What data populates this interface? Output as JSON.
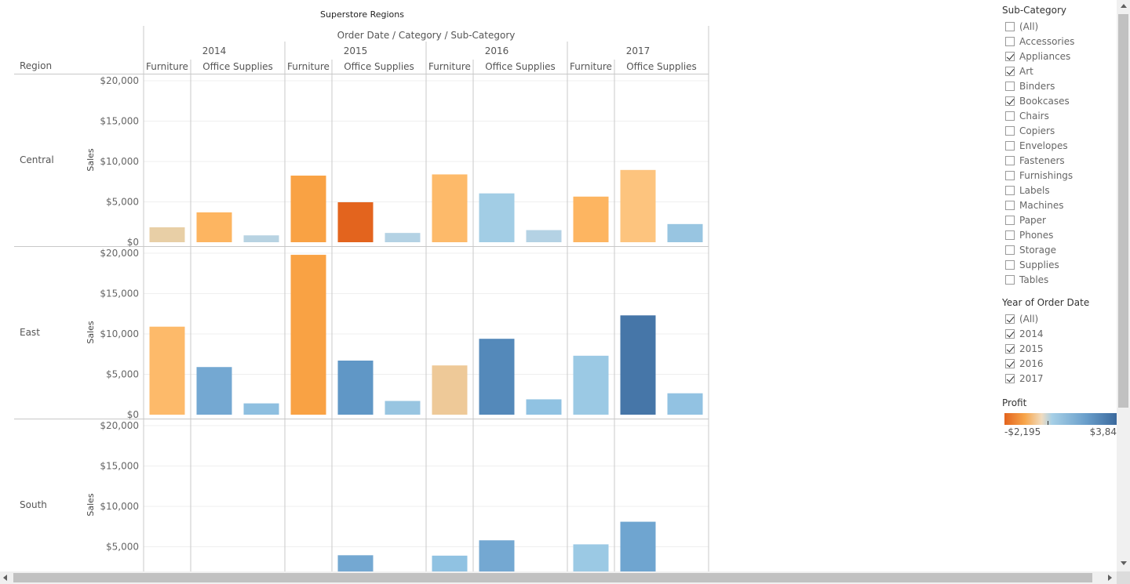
{
  "title": "Superstore Regions",
  "column_header": "Order Date / Category / Sub-Category",
  "region_header": "Region",
  "axis_label": "Sales",
  "chart_data": {
    "type": "bar",
    "title": "Superstore Regions",
    "ylabel": "Sales",
    "ylim": [
      0,
      20000
    ],
    "yticks": [
      0,
      5000,
      10000,
      15000,
      20000
    ],
    "ytick_labels": [
      "$0",
      "$5,000",
      "$10,000",
      "$15,000",
      "$20,000"
    ],
    "years": [
      "2014",
      "2015",
      "2016",
      "2017"
    ],
    "categories": [
      "Furniture",
      "Office Supplies"
    ],
    "subcategories_by_category": {
      "Furniture": [
        "Bookcases"
      ],
      "Office Supplies": [
        "Appliances",
        "Art"
      ]
    },
    "regions": [
      {
        "name": "Central",
        "values": [
          [
            1850,
            3700,
            850
          ],
          [
            8250,
            4950,
            1150
          ],
          [
            8400,
            6050,
            1500
          ],
          [
            5650,
            8950,
            2250
          ]
        ],
        "colors": [
          [
            "#e8cfa6",
            "#fdb561",
            "#b8d3e2"
          ],
          [
            "#f9a244",
            "#e3641e",
            "#b4d2e4"
          ],
          [
            "#fdba6a",
            "#a2cde5",
            "#b4d2e4"
          ],
          [
            "#fdb561",
            "#fdc47e",
            "#98c5e1"
          ]
        ]
      },
      {
        "name": "East",
        "values": [
          [
            10900,
            5900,
            1400
          ],
          [
            19800,
            6700,
            1700
          ],
          [
            6100,
            9400,
            1900
          ],
          [
            7300,
            12300,
            2650
          ]
        ],
        "colors": [
          [
            "#fdba6a",
            "#74a8d2",
            "#8ebfe0"
          ],
          [
            "#f9a244",
            "#6097c6",
            "#98c5e1"
          ],
          [
            "#eec998",
            "#5489ba",
            "#90c2e2"
          ],
          [
            "#9bc9e4",
            "#4676a8",
            "#92c2e2"
          ]
        ]
      },
      {
        "name": "South",
        "values": [
          [
            0,
            0,
            0
          ],
          [
            0,
            3950,
            0
          ],
          [
            3900,
            5800,
            0
          ],
          [
            5300,
            8100,
            0
          ]
        ],
        "colors": [
          [
            "#cccccc",
            "#cccccc",
            "#cccccc"
          ],
          [
            "#cccccc",
            "#74a8d2",
            "#cccccc"
          ],
          [
            "#90c2e2",
            "#74a8d2",
            "#cccccc"
          ],
          [
            "#9bc9e4",
            "#6fa5d0",
            "#cccccc"
          ]
        ]
      }
    ]
  },
  "filters": {
    "subcategory": {
      "title": "Sub-Category",
      "items": [
        {
          "label": "(All)",
          "checked": false
        },
        {
          "label": "Accessories",
          "checked": false
        },
        {
          "label": "Appliances",
          "checked": true
        },
        {
          "label": "Art",
          "checked": true
        },
        {
          "label": "Binders",
          "checked": false
        },
        {
          "label": "Bookcases",
          "checked": true
        },
        {
          "label": "Chairs",
          "checked": false
        },
        {
          "label": "Copiers",
          "checked": false
        },
        {
          "label": "Envelopes",
          "checked": false
        },
        {
          "label": "Fasteners",
          "checked": false
        },
        {
          "label": "Furnishings",
          "checked": false
        },
        {
          "label": "Labels",
          "checked": false
        },
        {
          "label": "Machines",
          "checked": false
        },
        {
          "label": "Paper",
          "checked": false
        },
        {
          "label": "Phones",
          "checked": false
        },
        {
          "label": "Storage",
          "checked": false
        },
        {
          "label": "Supplies",
          "checked": false
        },
        {
          "label": "Tables",
          "checked": false
        }
      ]
    },
    "year": {
      "title": "Year of Order Date",
      "items": [
        {
          "label": "(All)",
          "checked": true
        },
        {
          "label": "2014",
          "checked": true
        },
        {
          "label": "2015",
          "checked": true
        },
        {
          "label": "2016",
          "checked": true
        },
        {
          "label": "2017",
          "checked": true
        }
      ]
    }
  },
  "legend": {
    "title": "Profit",
    "min_label": "-$2,195",
    "max_label": "$3,84",
    "color_low": "#e3641e",
    "color_high": "#3a689c"
  }
}
